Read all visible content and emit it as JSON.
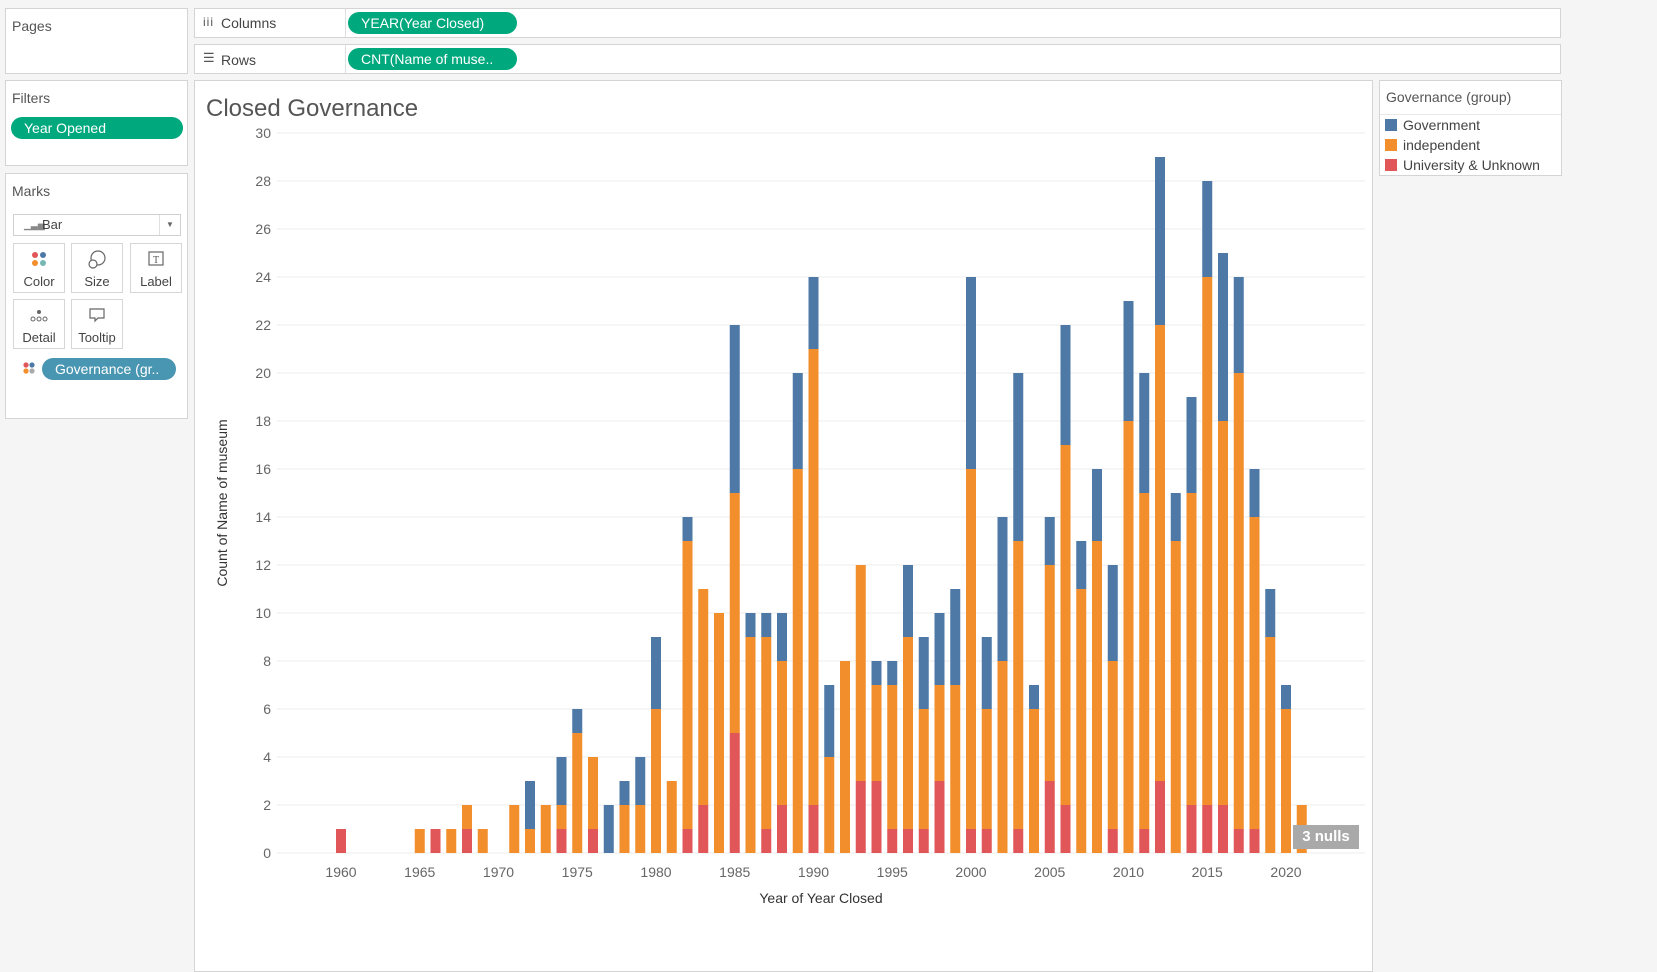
{
  "shelves": {
    "pages_title": "Pages",
    "columns_label": "Columns",
    "columns_pill": "YEAR(Year Closed)",
    "rows_label": "Rows",
    "rows_pill": "CNT(Name of muse.."
  },
  "filters": {
    "title": "Filters",
    "pill": "Year Opened"
  },
  "marks": {
    "title": "Marks",
    "type": "Bar",
    "buttons": [
      "Color",
      "Size",
      "Label",
      "Detail",
      "Tooltip"
    ],
    "color_pill": "Governance (gr.."
  },
  "legend": {
    "title": "Governance (group)",
    "items": [
      {
        "label": "Government",
        "color": "#4e79a7"
      },
      {
        "label": "independent",
        "color": "#f28e2b"
      },
      {
        "label": "University & Unknown",
        "color": "#e15759"
      }
    ]
  },
  "view": {
    "title": "Closed Governance",
    "nulls_badge": "3 nulls"
  },
  "chart_data": {
    "type": "bar",
    "stacked": true,
    "title": "Closed Governance",
    "xlabel": "Year of Year Closed",
    "ylabel": "Count of Name of museum",
    "ylim": [
      0,
      30
    ],
    "yticks": [
      0,
      2,
      4,
      6,
      8,
      10,
      12,
      14,
      16,
      18,
      20,
      22,
      24,
      26,
      28,
      30
    ],
    "xticks": [
      1960,
      1965,
      1970,
      1975,
      1980,
      1985,
      1990,
      1995,
      2000,
      2005,
      2010,
      2015,
      2020
    ],
    "grid": true,
    "legend_position": "right",
    "x": [
      1960,
      1965,
      1966,
      1967,
      1968,
      1969,
      1971,
      1972,
      1973,
      1974,
      1975,
      1976,
      1977,
      1978,
      1979,
      1980,
      1981,
      1982,
      1983,
      1984,
      1985,
      1986,
      1987,
      1988,
      1989,
      1990,
      1991,
      1992,
      1993,
      1994,
      1995,
      1996,
      1997,
      1998,
      1999,
      2000,
      2001,
      2002,
      2003,
      2004,
      2005,
      2006,
      2007,
      2008,
      2009,
      2010,
      2011,
      2012,
      2013,
      2014,
      2015,
      2016,
      2017,
      2018,
      2019,
      2020,
      2021
    ],
    "series": [
      {
        "name": "University & Unknown",
        "color": "#e15759",
        "values": [
          1,
          0,
          1,
          0,
          1,
          0,
          0,
          0,
          0,
          1,
          0,
          1,
          0,
          0,
          0,
          0,
          0,
          1,
          2,
          0,
          5,
          0,
          1,
          2,
          0,
          2,
          0,
          0,
          3,
          3,
          1,
          1,
          1,
          3,
          0,
          1,
          1,
          0,
          1,
          0,
          3,
          2,
          0,
          0,
          1,
          0,
          1,
          3,
          0,
          2,
          2,
          2,
          1,
          1,
          0,
          0,
          0
        ]
      },
      {
        "name": "independent",
        "color": "#f28e2b",
        "values": [
          0,
          1,
          0,
          1,
          1,
          1,
          2,
          1,
          2,
          1,
          5,
          3,
          0,
          2,
          2,
          6,
          3,
          12,
          9,
          10,
          10,
          9,
          8,
          6,
          16,
          19,
          4,
          8,
          9,
          4,
          6,
          8,
          5,
          4,
          7,
          15,
          5,
          8,
          12,
          6,
          9,
          15,
          11,
          13,
          7,
          18,
          14,
          19,
          13,
          13,
          22,
          16,
          19,
          13,
          9,
          6,
          2
        ]
      },
      {
        "name": "Government",
        "color": "#4e79a7",
        "values": [
          0,
          0,
          0,
          0,
          0,
          0,
          0,
          2,
          0,
          2,
          1,
          0,
          2,
          1,
          2,
          3,
          0,
          1,
          0,
          0,
          7,
          1,
          1,
          2,
          4,
          3,
          3,
          0,
          0,
          1,
          1,
          3,
          3,
          3,
          4,
          8,
          3,
          6,
          7,
          1,
          2,
          5,
          2,
          3,
          4,
          5,
          5,
          7,
          2,
          4,
          4,
          7,
          4,
          2,
          2,
          1,
          0
        ]
      }
    ]
  }
}
